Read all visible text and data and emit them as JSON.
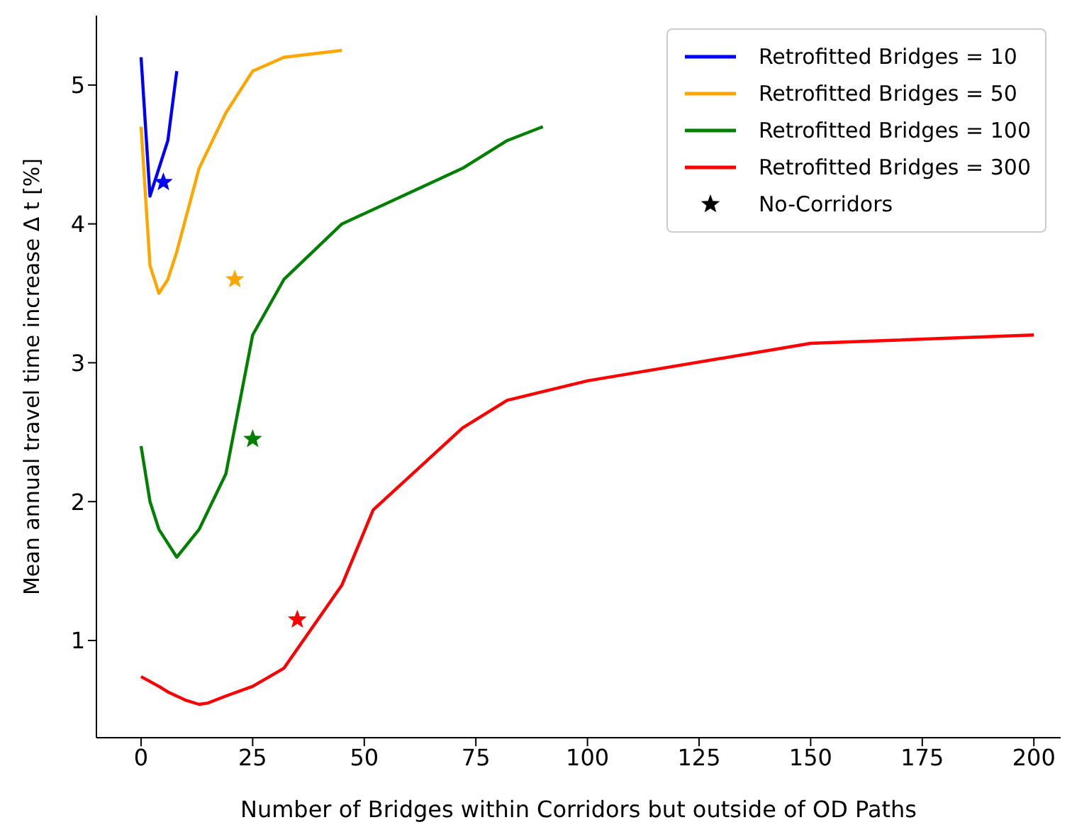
{
  "chart_data": {
    "type": "line",
    "xlabel": "Number of Bridges within Corridors but outside of OD Paths",
    "ylabel": "Mean annual travel time increase Δ t [%]",
    "xlim": [
      -10,
      206
    ],
    "xticks": [
      0,
      25,
      50,
      75,
      100,
      125,
      150,
      175,
      200
    ],
    "ylim": [
      0.3,
      5.5
    ],
    "yticks": [
      1,
      2,
      3,
      4,
      5
    ],
    "grid": false,
    "annotations": [
      "No-Corridors"
    ],
    "legend": "top right",
    "marker": "none",
    "line_style": "solid",
    "series": [
      {
        "name": "Retrofitted Bridges = 10",
        "color": "#0000ff",
        "x": [
          0,
          2,
          6,
          8
        ],
        "values": [
          5.2,
          4.2,
          4.6,
          5.1
        ]
      },
      {
        "name": "Retrofitted Bridges = 50",
        "color": "#ffa500",
        "x": [
          0,
          2,
          4,
          6,
          8,
          13,
          19,
          25,
          32,
          45
        ],
        "values": [
          4.7,
          3.7,
          3.5,
          3.6,
          3.8,
          4.4,
          4.8,
          5.1,
          5.2,
          5.25
        ]
      },
      {
        "name": "Retrofitted Bridges = 100",
        "color": "#008000",
        "x": [
          0,
          2,
          4,
          8,
          13,
          19,
          25,
          32,
          45,
          72,
          82,
          90
        ],
        "values": [
          2.4,
          2.0,
          1.8,
          1.6,
          1.8,
          2.2,
          3.2,
          3.6,
          4.0,
          4.4,
          4.6,
          4.7
        ]
      },
      {
        "name": "Retrofitted Bridges = 300",
        "color": "#ff0000",
        "x": [
          0,
          4,
          6,
          10,
          13,
          15,
          19,
          25,
          32,
          45,
          52,
          72,
          82,
          100,
          150,
          200
        ],
        "values": [
          0.74,
          0.67,
          0.63,
          0.57,
          0.54,
          0.55,
          0.6,
          0.67,
          0.8,
          1.4,
          1.94,
          2.53,
          2.73,
          2.87,
          3.14,
          3.2
        ]
      },
      {
        "type": "scatter",
        "color": "#000000",
        "colors": [
          "#0000ff",
          "#ffa500",
          "#008000",
          "#ff0000"
        ],
        "marker": "star",
        "x": [
          5,
          21,
          25,
          35
        ],
        "values": [
          4.3,
          3.6,
          2.45,
          1.15
        ]
      }
    ]
  }
}
